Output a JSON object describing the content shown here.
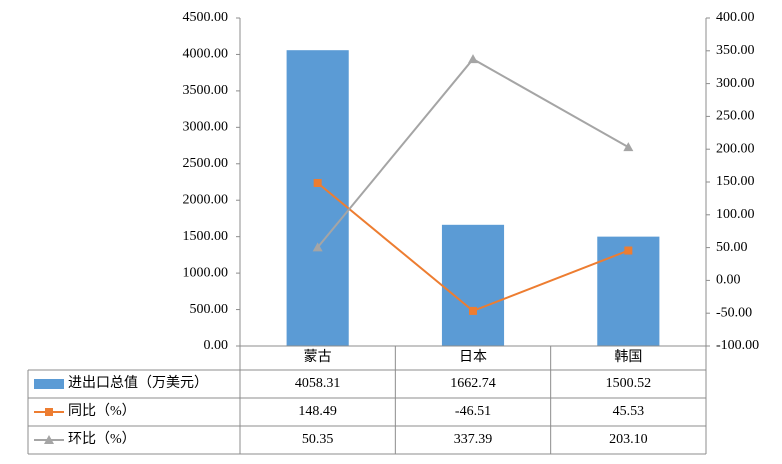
{
  "chart_data": {
    "type": "bar-line-table",
    "categories": [
      "蒙古",
      "日本",
      "韩国"
    ],
    "series": [
      {
        "name": "进出口总值（万美元）",
        "type": "bar",
        "color": "#5b9bd5",
        "values": [
          4058.31,
          1662.74,
          1500.52
        ]
      },
      {
        "name": "同比（%）",
        "type": "line",
        "marker": "square",
        "axis": "y2",
        "color": "#ed7d31",
        "values": [
          148.49,
          -46.51,
          45.53
        ]
      },
      {
        "name": "环比（%）",
        "type": "line",
        "marker": "triangle",
        "axis": "y2",
        "color": "#a5a5a5",
        "values": [
          50.35,
          337.39,
          203.1
        ],
        "value_labels": [
          "50.35",
          "337.39",
          "203.10"
        ]
      }
    ],
    "ylim": [
      0,
      4500
    ],
    "yticks": [
      {
        "value": 0,
        "label": "0.00"
      },
      {
        "value": 500,
        "label": "500.00"
      },
      {
        "value": 1000,
        "label": "1000.00"
      },
      {
        "value": 1500,
        "label": "1500.00"
      },
      {
        "value": 2000,
        "label": "2000.00"
      },
      {
        "value": 2500,
        "label": "2500.00"
      },
      {
        "value": 3000,
        "label": "3000.00"
      },
      {
        "value": 3500,
        "label": "3500.00"
      },
      {
        "value": 4000,
        "label": "4000.00"
      },
      {
        "value": 4500,
        "label": "4500.00"
      }
    ],
    "y2lim": [
      -100,
      400
    ],
    "y2ticks": [
      {
        "value": -100,
        "label": "-100.00"
      },
      {
        "value": -50,
        "label": "-50.00"
      },
      {
        "value": 0,
        "label": "0.00"
      },
      {
        "value": 50,
        "label": "50.00"
      },
      {
        "value": 100,
        "label": "100.00"
      },
      {
        "value": 150,
        "label": "150.00"
      },
      {
        "value": 200,
        "label": "200.00"
      },
      {
        "value": 250,
        "label": "250.00"
      },
      {
        "value": 300,
        "label": "300.00"
      },
      {
        "value": 350,
        "label": "350.00"
      },
      {
        "value": 400,
        "label": "400.00"
      }
    ],
    "grid": false
  }
}
